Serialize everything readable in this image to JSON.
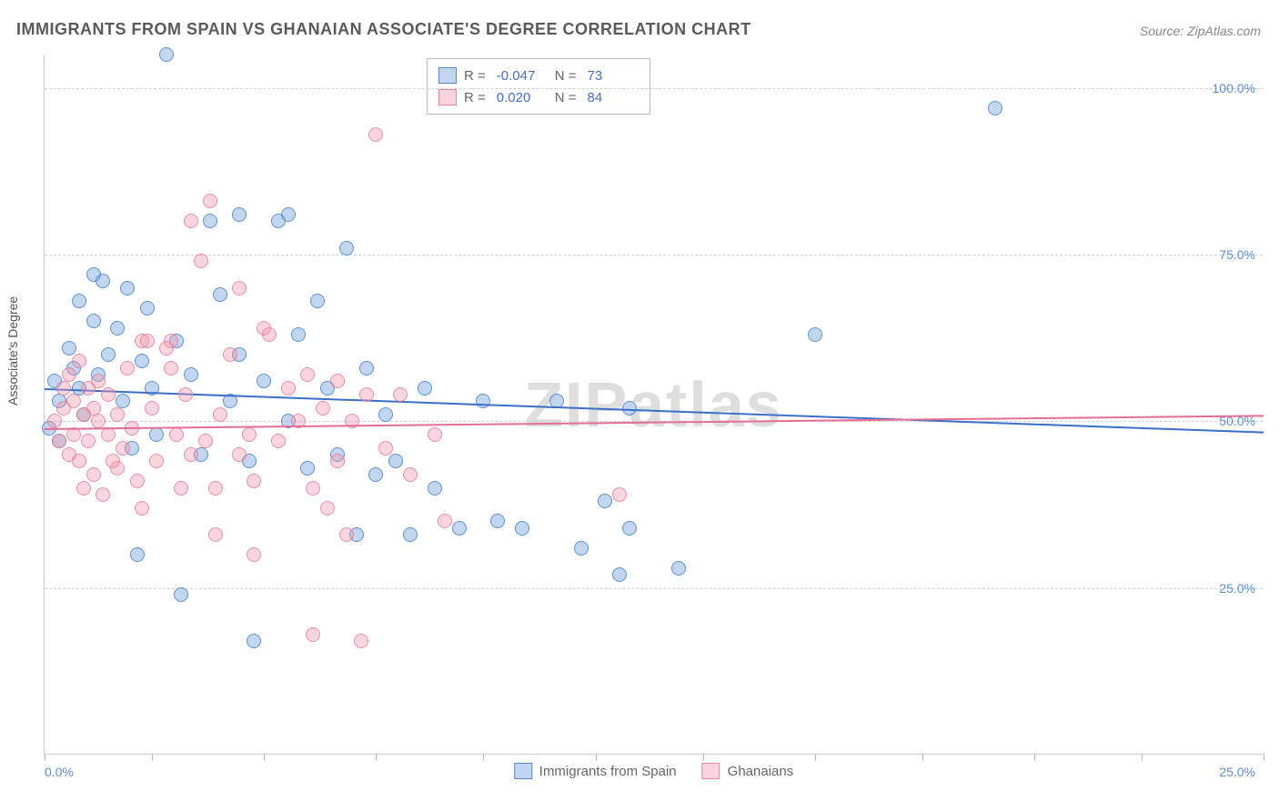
{
  "title": "IMMIGRANTS FROM SPAIN VS GHANAIAN ASSOCIATE'S DEGREE CORRELATION CHART",
  "source": "Source: ZipAtlas.com",
  "watermark": "ZIPatlas",
  "yaxis_title": "Associate's Degree",
  "chart": {
    "type": "scatter",
    "xlim": [
      0,
      25
    ],
    "ylim": [
      0,
      105
    ],
    "x_ticks": [
      0,
      2.2,
      4.5,
      6.8,
      9.0,
      11.3,
      13.5,
      15.8,
      18.0,
      20.3,
      22.5,
      25
    ],
    "y_gridlines": [
      25,
      50,
      75,
      100
    ],
    "y_labels": [
      "25.0%",
      "50.0%",
      "75.0%",
      "100.0%"
    ],
    "x_label_start": "0.0%",
    "x_label_end": "25.0%",
    "background_color": "#ffffff",
    "grid_color": "#d0d0d0",
    "series": [
      {
        "name": "Immigrants from Spain",
        "color_fill": "rgba(120,165,220,0.45)",
        "color_stroke": "rgba(70,130,200,0.8)",
        "r": "-0.047",
        "n": "73",
        "regression": {
          "y_at_x0": 55,
          "y_at_x25": 48.5,
          "color": "#3b6fc9",
          "width": 2
        },
        "points": [
          [
            0.1,
            49
          ],
          [
            0.2,
            56
          ],
          [
            0.3,
            47
          ],
          [
            0.3,
            53
          ],
          [
            0.5,
            61
          ],
          [
            0.6,
            58
          ],
          [
            0.7,
            55
          ],
          [
            0.7,
            68
          ],
          [
            0.8,
            51
          ],
          [
            1.0,
            72
          ],
          [
            1.0,
            65
          ],
          [
            1.1,
            57
          ],
          [
            1.2,
            71
          ],
          [
            1.3,
            60
          ],
          [
            1.5,
            64
          ],
          [
            1.6,
            53
          ],
          [
            1.7,
            70
          ],
          [
            1.8,
            46
          ],
          [
            1.9,
            30
          ],
          [
            2.0,
            59
          ],
          [
            2.1,
            67
          ],
          [
            2.2,
            55
          ],
          [
            2.3,
            48
          ],
          [
            2.5,
            105
          ],
          [
            2.7,
            62
          ],
          [
            2.8,
            24
          ],
          [
            3.0,
            57
          ],
          [
            3.2,
            45
          ],
          [
            3.4,
            80
          ],
          [
            3.6,
            69
          ],
          [
            3.8,
            53
          ],
          [
            4.0,
            81
          ],
          [
            4.0,
            60
          ],
          [
            4.2,
            44
          ],
          [
            4.3,
            17
          ],
          [
            4.5,
            56
          ],
          [
            4.8,
            80
          ],
          [
            5.0,
            81
          ],
          [
            5.0,
            50
          ],
          [
            5.2,
            63
          ],
          [
            5.4,
            43
          ],
          [
            5.6,
            68
          ],
          [
            5.8,
            55
          ],
          [
            6.0,
            45
          ],
          [
            6.2,
            76
          ],
          [
            6.4,
            33
          ],
          [
            6.6,
            58
          ],
          [
            6.8,
            42
          ],
          [
            7.0,
            51
          ],
          [
            7.2,
            44
          ],
          [
            7.5,
            33
          ],
          [
            7.8,
            55
          ],
          [
            8.0,
            40
          ],
          [
            8.5,
            34
          ],
          [
            9.0,
            53
          ],
          [
            9.3,
            35
          ],
          [
            9.8,
            34
          ],
          [
            10.5,
            53
          ],
          [
            11.0,
            31
          ],
          [
            11.5,
            38
          ],
          [
            11.8,
            27
          ],
          [
            12.0,
            34
          ],
          [
            12.0,
            52
          ],
          [
            13.0,
            28
          ],
          [
            15.8,
            63
          ],
          [
            19.5,
            97
          ]
        ]
      },
      {
        "name": "Ghanaians",
        "color_fill": "rgba(240,150,170,0.4)",
        "color_stroke": "rgba(230,120,150,0.75)",
        "r": "0.020",
        "n": "84",
        "regression": {
          "y_at_x0": 49,
          "y_at_x25": 51,
          "color": "#e36f92",
          "width": 2
        },
        "points": [
          [
            0.2,
            50
          ],
          [
            0.3,
            47
          ],
          [
            0.4,
            55
          ],
          [
            0.4,
            52
          ],
          [
            0.5,
            45
          ],
          [
            0.5,
            57
          ],
          [
            0.6,
            48
          ],
          [
            0.6,
            53
          ],
          [
            0.7,
            44
          ],
          [
            0.7,
            59
          ],
          [
            0.8,
            51
          ],
          [
            0.8,
            40
          ],
          [
            0.9,
            55
          ],
          [
            0.9,
            47
          ],
          [
            1.0,
            52
          ],
          [
            1.0,
            42
          ],
          [
            1.1,
            50
          ],
          [
            1.1,
            56
          ],
          [
            1.2,
            39
          ],
          [
            1.3,
            48
          ],
          [
            1.3,
            54
          ],
          [
            1.4,
            44
          ],
          [
            1.5,
            51
          ],
          [
            1.5,
            43
          ],
          [
            1.6,
            46
          ],
          [
            1.7,
            58
          ],
          [
            1.8,
            49
          ],
          [
            1.9,
            41
          ],
          [
            2.0,
            62
          ],
          [
            2.0,
            37
          ],
          [
            2.1,
            62
          ],
          [
            2.2,
            52
          ],
          [
            2.3,
            44
          ],
          [
            2.5,
            61
          ],
          [
            2.6,
            58
          ],
          [
            2.6,
            62
          ],
          [
            2.7,
            48
          ],
          [
            2.8,
            40
          ],
          [
            2.9,
            54
          ],
          [
            3.0,
            80
          ],
          [
            3.0,
            45
          ],
          [
            3.2,
            74
          ],
          [
            3.3,
            47
          ],
          [
            3.4,
            83
          ],
          [
            3.5,
            33
          ],
          [
            3.5,
            40
          ],
          [
            3.6,
            51
          ],
          [
            3.8,
            60
          ],
          [
            4.0,
            45
          ],
          [
            4.0,
            70
          ],
          [
            4.2,
            48
          ],
          [
            4.3,
            41
          ],
          [
            4.3,
            30
          ],
          [
            4.5,
            64
          ],
          [
            4.6,
            63
          ],
          [
            4.8,
            47
          ],
          [
            5.0,
            55
          ],
          [
            5.2,
            50
          ],
          [
            5.4,
            57
          ],
          [
            5.5,
            40
          ],
          [
            5.5,
            18
          ],
          [
            5.7,
            52
          ],
          [
            5.8,
            37
          ],
          [
            6.0,
            56
          ],
          [
            6.0,
            44
          ],
          [
            6.2,
            33
          ],
          [
            6.3,
            50
          ],
          [
            6.5,
            17
          ],
          [
            6.6,
            54
          ],
          [
            6.8,
            93
          ],
          [
            7.0,
            46
          ],
          [
            7.3,
            54
          ],
          [
            7.5,
            42
          ],
          [
            8.0,
            48
          ],
          [
            8.2,
            35
          ],
          [
            11.8,
            39
          ]
        ]
      }
    ]
  },
  "correlation_legend": {
    "r_label": "R =",
    "n_label": "N ="
  },
  "bottom_legend": [
    {
      "swatch": "blue",
      "label": "Immigrants from Spain"
    },
    {
      "swatch": "pink",
      "label": "Ghanaians"
    }
  ]
}
